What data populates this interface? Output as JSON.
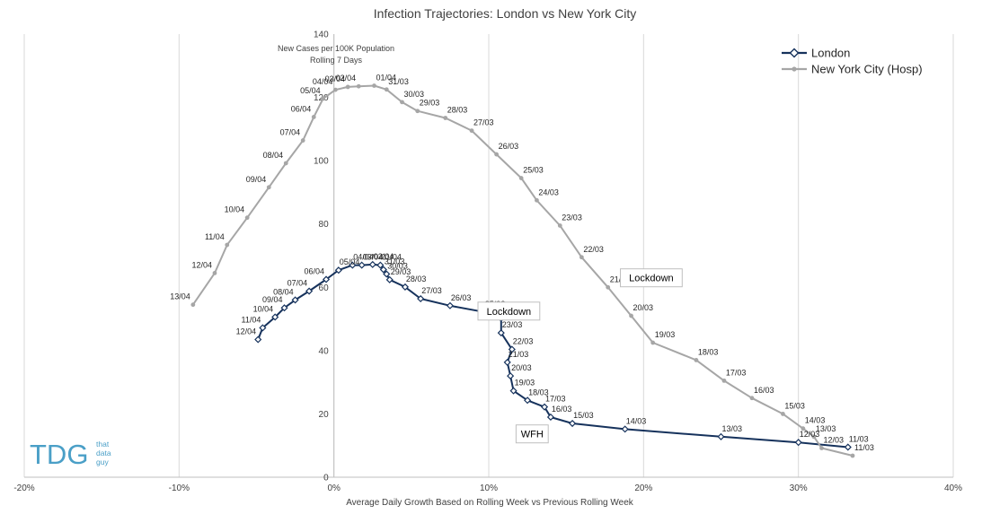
{
  "chart_data": {
    "type": "line",
    "title": "Infection Trajectories: London vs New York City",
    "xlabel": "Average Daily Growth Based on Rolling Week vs Previous Rolling Week",
    "ylabel": "",
    "xlim": [
      -0.2,
      0.4
    ],
    "ylim": [
      0,
      140
    ],
    "x_ticks": [
      -0.2,
      -0.1,
      0,
      0.1,
      0.2,
      0.3,
      0.4
    ],
    "x_tick_labels": [
      "-20%",
      "-10%",
      "0%",
      "10%",
      "20%",
      "30%",
      "40%"
    ],
    "y_ticks": [
      0,
      20,
      40,
      60,
      80,
      100,
      120,
      140
    ],
    "y_tick_labels": [
      "0",
      "20",
      "40",
      "60",
      "80",
      "100",
      "120",
      "140"
    ],
    "grid": "vertical",
    "legend_position": "top-right",
    "note_lines": [
      "New Cases per 100K Population",
      "Rolling 7 Days"
    ],
    "series": [
      {
        "name": "London",
        "color": "#16325c",
        "marker": "diamond",
        "points": [
          {
            "label": "11/03",
            "x": 0.332,
            "y": 9.5
          },
          {
            "label": "12/03",
            "x": 0.3,
            "y": 11.0
          },
          {
            "label": "13/03",
            "x": 0.25,
            "y": 12.8
          },
          {
            "label": "14/03",
            "x": 0.188,
            "y": 15.2
          },
          {
            "label": "15/03",
            "x": 0.154,
            "y": 17.0
          },
          {
            "label": "16/03",
            "x": 0.14,
            "y": 19.0
          },
          {
            "label": "17/03",
            "x": 0.136,
            "y": 22.2
          },
          {
            "label": "18/03",
            "x": 0.125,
            "y": 24.3
          },
          {
            "label": "19/03",
            "x": 0.116,
            "y": 27.3
          },
          {
            "label": "20/03",
            "x": 0.114,
            "y": 32.0
          },
          {
            "label": "21/03",
            "x": 0.112,
            "y": 36.3
          },
          {
            "label": "22/03",
            "x": 0.115,
            "y": 40.4
          },
          {
            "label": "23/03",
            "x": 0.108,
            "y": 45.6
          },
          {
            "label": "24/03",
            "x": 0.108,
            "y": 50.2
          },
          {
            "label": "25/03",
            "x": 0.097,
            "y": 52.2
          },
          {
            "label": "26/03",
            "x": 0.075,
            "y": 54.2
          },
          {
            "label": "27/03",
            "x": 0.056,
            "y": 56.4
          },
          {
            "label": "28/03",
            "x": 0.046,
            "y": 60.1
          },
          {
            "label": "29/03",
            "x": 0.036,
            "y": 62.4
          },
          {
            "label": "30/03",
            "x": 0.034,
            "y": 64.2
          },
          {
            "label": "31/03",
            "x": 0.032,
            "y": 65.6
          },
          {
            "label": "01/04",
            "x": 0.03,
            "y": 67.0
          },
          {
            "label": "02/04",
            "x": 0.025,
            "y": 67.2
          },
          {
            "label": "03/04",
            "x": 0.018,
            "y": 67.0
          },
          {
            "label": "04/04",
            "x": 0.012,
            "y": 67.0
          },
          {
            "label": "05/04",
            "x": 0.003,
            "y": 65.4
          },
          {
            "label": "06/04",
            "x": -0.005,
            "y": 62.5
          },
          {
            "label": "07/04",
            "x": -0.016,
            "y": 58.8
          },
          {
            "label": "08/04",
            "x": -0.025,
            "y": 56.0
          },
          {
            "label": "09/04",
            "x": -0.032,
            "y": 53.5
          },
          {
            "label": "10/04",
            "x": -0.038,
            "y": 50.6
          },
          {
            "label": "11/04",
            "x": -0.046,
            "y": 47.2
          },
          {
            "label": "12/04",
            "x": -0.049,
            "y": 43.5
          }
        ]
      },
      {
        "name": "New York City (Hosp)",
        "color": "#a6a6a6",
        "marker": "circle",
        "points": [
          {
            "label": "11/03",
            "x": 0.335,
            "y": 6.8
          },
          {
            "label": "12/03",
            "x": 0.315,
            "y": 9.2
          },
          {
            "label": "13/03",
            "x": 0.31,
            "y": 12.8
          },
          {
            "label": "14/03",
            "x": 0.303,
            "y": 15.4
          },
          {
            "label": "15/03",
            "x": 0.29,
            "y": 20.0
          },
          {
            "label": "16/03",
            "x": 0.27,
            "y": 25.0
          },
          {
            "label": "17/03",
            "x": 0.252,
            "y": 30.5
          },
          {
            "label": "18/03",
            "x": 0.234,
            "y": 37.0
          },
          {
            "label": "19/03",
            "x": 0.206,
            "y": 42.5
          },
          {
            "label": "20/03",
            "x": 0.192,
            "y": 51.0
          },
          {
            "label": "21/03",
            "x": 0.177,
            "y": 60.0
          },
          {
            "label": "22/03",
            "x": 0.16,
            "y": 69.5
          },
          {
            "label": "23/03",
            "x": 0.146,
            "y": 79.5
          },
          {
            "label": "24/03",
            "x": 0.131,
            "y": 87.5
          },
          {
            "label": "25/03",
            "x": 0.121,
            "y": 94.5
          },
          {
            "label": "26/03",
            "x": 0.105,
            "y": 102.0
          },
          {
            "label": "27/03",
            "x": 0.089,
            "y": 109.5
          },
          {
            "label": "28/03",
            "x": 0.072,
            "y": 113.5
          },
          {
            "label": "29/03",
            "x": 0.054,
            "y": 115.7
          },
          {
            "label": "30/03",
            "x": 0.044,
            "y": 118.5
          },
          {
            "label": "31/03",
            "x": 0.034,
            "y": 122.5
          },
          {
            "label": "01/04",
            "x": 0.026,
            "y": 123.7
          },
          {
            "label": "02/04",
            "x": 0.016,
            "y": 123.5
          },
          {
            "label": "03/04",
            "x": 0.009,
            "y": 123.3
          },
          {
            "label": "04/04",
            "x": 0.001,
            "y": 122.4
          },
          {
            "label": "05/04",
            "x": -0.007,
            "y": 119.6
          },
          {
            "label": "06/04",
            "x": -0.013,
            "y": 113.8
          },
          {
            "label": "07/04",
            "x": -0.02,
            "y": 106.4
          },
          {
            "label": "08/04",
            "x": -0.031,
            "y": 99.2
          },
          {
            "label": "09/04",
            "x": -0.042,
            "y": 91.6
          },
          {
            "label": "10/04",
            "x": -0.056,
            "y": 82.0
          },
          {
            "label": "11/04",
            "x": -0.069,
            "y": 73.4
          },
          {
            "label": "12/04",
            "x": -0.077,
            "y": 64.5
          },
          {
            "label": "13/04",
            "x": -0.091,
            "y": 54.5
          }
        ]
      }
    ],
    "annotations": [
      {
        "text": "Lockdown",
        "x": 0.113,
        "y": 52.5,
        "series": "London"
      },
      {
        "text": "WFH",
        "x": 0.128,
        "y": 13.7,
        "series": "London"
      },
      {
        "text": "Lockdown",
        "x": 0.205,
        "y": 63.0,
        "series": "New York City (Hosp)"
      }
    ]
  },
  "logo": {
    "initials": "TDG",
    "words": [
      "that",
      "data",
      "guy"
    ],
    "color": "#4a9fc7"
  }
}
